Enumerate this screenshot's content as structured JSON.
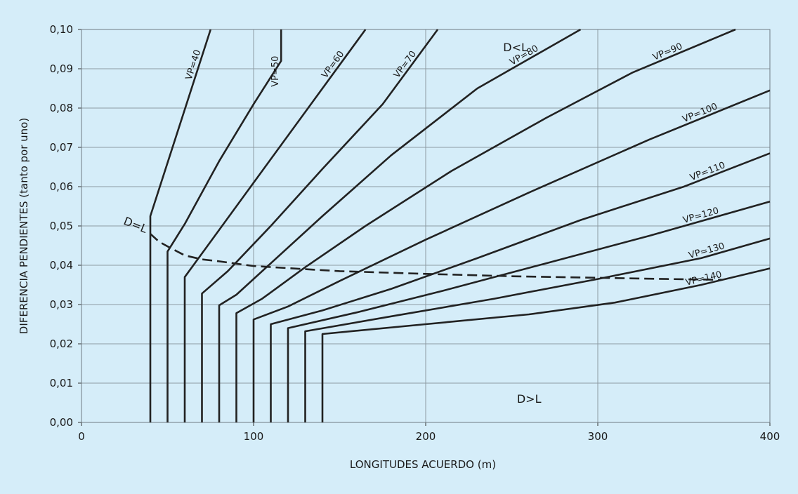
{
  "chart_data": {
    "type": "line",
    "xlabel": "LONGITUDES ACUERDO (m)",
    "ylabel": "DIFERENCIA PENDIENTES (tanto por uno)",
    "xlim": [
      0,
      400
    ],
    "ylim": [
      0,
      0.1
    ],
    "x_ticks": [
      0,
      100,
      200,
      300,
      400
    ],
    "x_tick_labels": [
      "0",
      "100",
      "200",
      "300",
      "400"
    ],
    "y_ticks": [
      0,
      0.01,
      0.02,
      0.03,
      0.04,
      0.05,
      0.06,
      0.07,
      0.08,
      0.09,
      0.1
    ],
    "y_tick_labels": [
      "0,00",
      "0,01",
      "0,02",
      "0,03",
      "0,04",
      "0,05",
      "0,06",
      "0,07",
      "0,08",
      "0,09",
      "0,10"
    ],
    "grid": true,
    "line_color": "#222222",
    "series": [
      {
        "name": "VP=40",
        "points": [
          [
            40,
            0
          ],
          [
            40,
            0.0525
          ],
          [
            75,
            0.1
          ]
        ]
      },
      {
        "name": "VP=50",
        "points": [
          [
            50,
            0
          ],
          [
            50,
            0.0435
          ],
          [
            60,
            0.0505
          ],
          [
            80,
            0.0665
          ],
          [
            100,
            0.081
          ],
          [
            116,
            0.092
          ],
          [
            116,
            0.1
          ]
        ]
      },
      {
        "name": "VP=60",
        "points": [
          [
            60,
            0
          ],
          [
            60,
            0.037
          ],
          [
            75,
            0.046
          ],
          [
            100,
            0.061
          ],
          [
            130,
            0.079
          ],
          [
            165,
            0.1
          ]
        ]
      },
      {
        "name": "VP=70",
        "points": [
          [
            70,
            0
          ],
          [
            70,
            0.0328
          ],
          [
            85,
            0.0385
          ],
          [
            110,
            0.05
          ],
          [
            140,
            0.0645
          ],
          [
            175,
            0.081
          ],
          [
            207,
            0.1
          ]
        ]
      },
      {
        "name": "VP=80",
        "points": [
          [
            80,
            0
          ],
          [
            80,
            0.0298
          ],
          [
            90,
            0.0325
          ],
          [
            110,
            0.0405
          ],
          [
            140,
            0.0525
          ],
          [
            180,
            0.068
          ],
          [
            230,
            0.085
          ],
          [
            290,
            0.1
          ]
        ]
      },
      {
        "name": "VP=90",
        "points": [
          [
            90,
            0
          ],
          [
            90,
            0.0278
          ],
          [
            105,
            0.0315
          ],
          [
            130,
            0.0395
          ],
          [
            165,
            0.05
          ],
          [
            215,
            0.064
          ],
          [
            270,
            0.0775
          ],
          [
            320,
            0.089
          ],
          [
            380,
            0.1
          ]
        ]
      },
      {
        "name": "VP=100",
        "points": [
          [
            100,
            0
          ],
          [
            100,
            0.0262
          ],
          [
            120,
            0.0295
          ],
          [
            150,
            0.036
          ],
          [
            200,
            0.0465
          ],
          [
            260,
            0.0585
          ],
          [
            330,
            0.072
          ],
          [
            400,
            0.0845
          ]
        ]
      },
      {
        "name": "VP=110",
        "points": [
          [
            110,
            0
          ],
          [
            110,
            0.025
          ],
          [
            140,
            0.0285
          ],
          [
            180,
            0.034
          ],
          [
            230,
            0.0418
          ],
          [
            290,
            0.0515
          ],
          [
            350,
            0.06
          ],
          [
            400,
            0.0685
          ]
        ]
      },
      {
        "name": "VP=120",
        "points": [
          [
            120,
            0
          ],
          [
            120,
            0.024
          ],
          [
            160,
            0.028
          ],
          [
            210,
            0.0335
          ],
          [
            270,
            0.0405
          ],
          [
            330,
            0.0475
          ],
          [
            400,
            0.0562
          ]
        ]
      },
      {
        "name": "VP=130",
        "points": [
          [
            130,
            0
          ],
          [
            130,
            0.0232
          ],
          [
            180,
            0.027
          ],
          [
            240,
            0.0315
          ],
          [
            300,
            0.0365
          ],
          [
            360,
            0.0418
          ],
          [
            400,
            0.0468
          ]
        ]
      },
      {
        "name": "VP=140",
        "points": [
          [
            140,
            0
          ],
          [
            140,
            0.0225
          ],
          [
            200,
            0.025
          ],
          [
            260,
            0.0275
          ],
          [
            310,
            0.0305
          ],
          [
            360,
            0.035
          ],
          [
            400,
            0.0392
          ]
        ]
      }
    ],
    "boundary_curve": {
      "name": "D=L",
      "style": "dashed",
      "points": [
        [
          40,
          0.048
        ],
        [
          45,
          0.046
        ],
        [
          50,
          0.0448
        ],
        [
          60,
          0.0425
        ],
        [
          70,
          0.0415
        ],
        [
          80,
          0.041
        ],
        [
          100,
          0.0398
        ],
        [
          130,
          0.039
        ],
        [
          150,
          0.0385
        ],
        [
          200,
          0.0378
        ],
        [
          250,
          0.0372
        ],
        [
          300,
          0.0368
        ],
        [
          340,
          0.0365
        ],
        [
          372,
          0.0363
        ]
      ]
    },
    "annotations": [
      {
        "text": "D<L",
        "x": 245,
        "y": 0.0945
      },
      {
        "text": "D>L",
        "x": 253,
        "y": 0.005
      },
      {
        "text": "D=L",
        "x": 24,
        "y": 0.0505
      }
    ]
  }
}
